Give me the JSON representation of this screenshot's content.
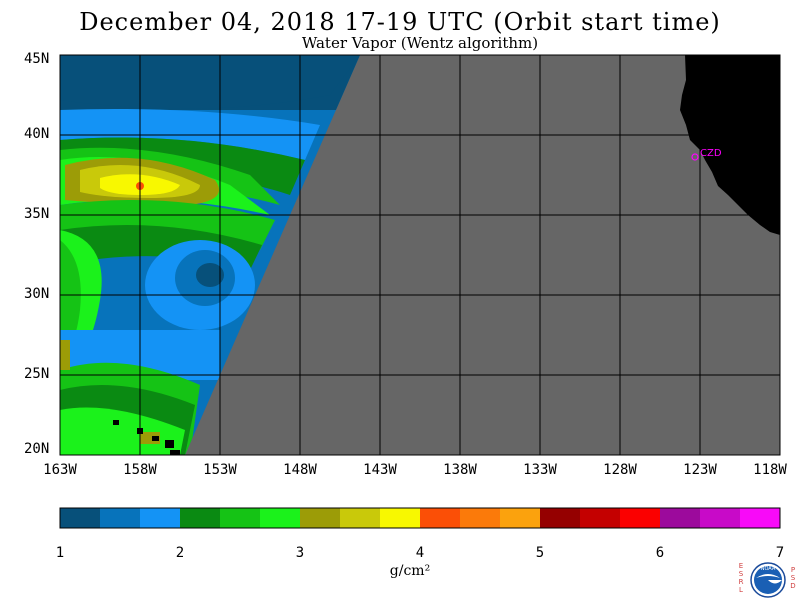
{
  "header": {
    "title": "December 04, 2018  17-19 UTC  (Orbit start time)",
    "subtitle": "Water Vapor (Wentz algorithm)"
  },
  "map": {
    "lat_labels": [
      "45N",
      "40N",
      "35N",
      "30N",
      "25N",
      "20N"
    ],
    "lon_labels": [
      "163W",
      "158W",
      "153W",
      "148W",
      "143W",
      "138W",
      "133W",
      "128W",
      "123W",
      "118W"
    ],
    "lat_range": [
      20,
      45
    ],
    "lon_range": [
      -163,
      -118
    ],
    "no_data_color": "#666666",
    "land_color": "#000000",
    "grid_color": "#000000",
    "station": {
      "label": "CZD",
      "color": "#ff00ff"
    }
  },
  "colorbar": {
    "tick_labels": [
      "1",
      "2",
      "3",
      "4",
      "5",
      "6",
      "7"
    ],
    "units": "g/cm²",
    "colors": [
      "#07507a",
      "#0773bb",
      "#1493f5",
      "#0a8a12",
      "#15c315",
      "#1bf21b",
      "#9c9c07",
      "#c9c90a",
      "#f8f800",
      "#fb4f06",
      "#fb7a0a",
      "#fba20d",
      "#950000",
      "#c40000",
      "#fb0000",
      "#9c0a9c",
      "#c80ac8",
      "#f80af8"
    ]
  },
  "logo": {
    "left_letters": [
      "E",
      "S",
      "R",
      "L"
    ],
    "right_letters": [
      "P",
      "S",
      "D"
    ],
    "emblem_text": "NOAA"
  }
}
